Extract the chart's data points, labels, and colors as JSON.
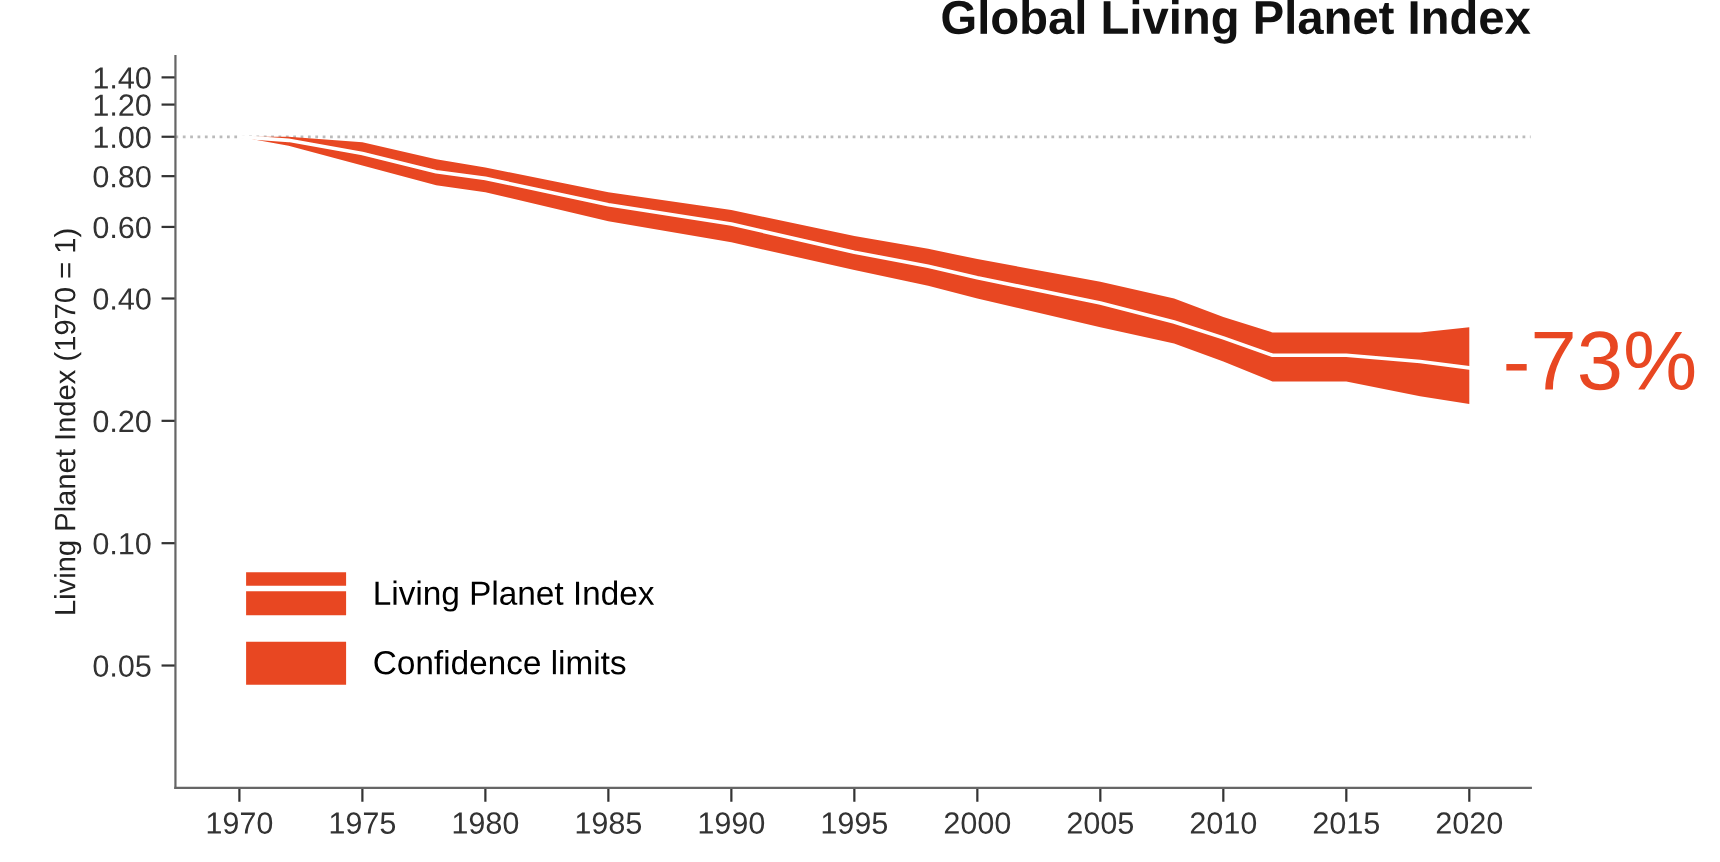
{
  "chart_data": {
    "type": "line",
    "title": "Global Living Planet Index",
    "ylabel": "Living Planet Index (1970 = 1)",
    "x": [
      1970,
      1972,
      1975,
      1978,
      1980,
      1985,
      1990,
      1995,
      1998,
      2000,
      2005,
      2008,
      2010,
      2012,
      2015,
      2018,
      2020
    ],
    "series": [
      {
        "name": "Living Planet Index",
        "color": "#ffffff",
        "values": [
          1.0,
          0.98,
          0.91,
          0.82,
          0.79,
          0.68,
          0.61,
          0.52,
          0.48,
          0.45,
          0.39,
          0.35,
          0.32,
          0.29,
          0.29,
          0.28,
          0.27
        ],
        "lower": [
          1.0,
          0.95,
          0.85,
          0.76,
          0.73,
          0.62,
          0.55,
          0.47,
          0.43,
          0.4,
          0.34,
          0.31,
          0.28,
          0.25,
          0.25,
          0.23,
          0.22
        ],
        "upper": [
          1.0,
          1.0,
          0.97,
          0.88,
          0.84,
          0.73,
          0.66,
          0.57,
          0.53,
          0.5,
          0.44,
          0.4,
          0.36,
          0.33,
          0.33,
          0.33,
          0.34
        ]
      },
      {
        "name": "Confidence limits",
        "type": "area",
        "color": "#e84722",
        "values": [
          null,
          null,
          null,
          null,
          null,
          null,
          null,
          null,
          null,
          null,
          null,
          null,
          null,
          null,
          null,
          null,
          null
        ]
      }
    ],
    "log": "y",
    "xlim": [
      1967.4,
      2022.5
    ],
    "ylim": [
      0.025,
      1.58
    ],
    "xticks": [
      1970,
      1975,
      1980,
      1985,
      1990,
      1995,
      2000,
      2005,
      2010,
      2015,
      2020
    ],
    "yticks": [
      {
        "value": 0.05,
        "label": "0.05"
      },
      {
        "value": 0.1,
        "label": "0.10"
      },
      {
        "value": 0.2,
        "label": "0.20"
      },
      {
        "value": 0.4,
        "label": "0.40"
      },
      {
        "value": 0.6,
        "label": "0.60"
      },
      {
        "value": 0.8,
        "label": "0.80"
      },
      {
        "value": 1.0,
        "label": "1.00"
      },
      {
        "value": 1.2,
        "label": "1.20"
      },
      {
        "value": 1.4,
        "label": "1.40"
      }
    ],
    "ref_lines": [
      {
        "axis": "y",
        "value": 1.0,
        "color": "#bbbbbb",
        "line_style": "dotted"
      }
    ],
    "annotations": [
      {
        "text": "-73%",
        "x": 2020,
        "y": 0.27
      }
    ],
    "legend": "bottom left",
    "grid": false
  }
}
